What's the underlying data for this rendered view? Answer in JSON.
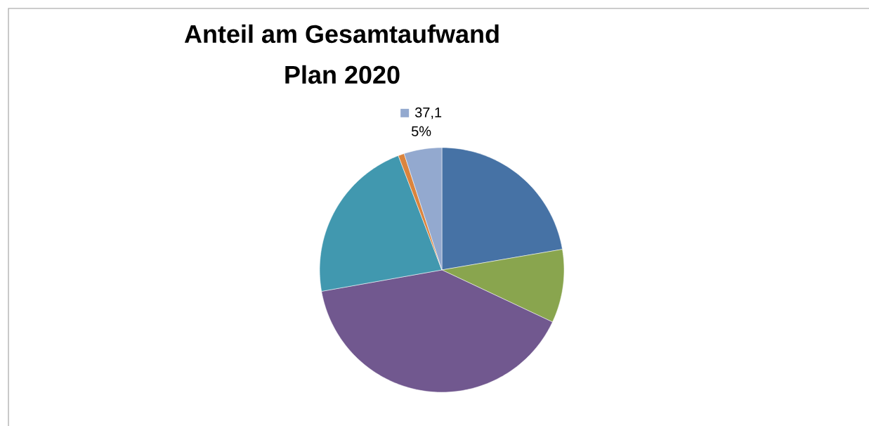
{
  "chart_data": {
    "type": "pie",
    "title": "Anteil am Gesamtaufwand",
    "subtitle": "Plan 2020",
    "categories": [
      null,
      null,
      null,
      null,
      null,
      "37,1"
    ],
    "values": [
      22.3,
      9.7,
      40.2,
      22.0,
      0.8,
      5
    ],
    "value_labels": [
      null,
      null,
      null,
      null,
      null,
      "5%"
    ],
    "colors": [
      "#4672a5",
      "#89a54e",
      "#71588f",
      "#4198af",
      "#db843d",
      "#93a9cf"
    ]
  }
}
